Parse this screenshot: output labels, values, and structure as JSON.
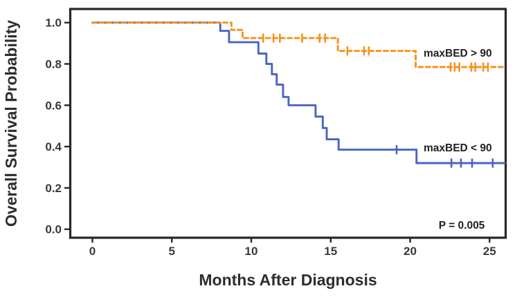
{
  "chart_data": {
    "type": "line",
    "subtype": "kaplan-meier-step",
    "title": "",
    "xlabel": "Months After Diagnosis",
    "ylabel": "Overall Survival Probability",
    "xlim": [
      -1.5,
      26.2
    ],
    "ylim": [
      -0.06,
      1.07
    ],
    "grid": false,
    "legend_position": "inline-labels",
    "x_ticks": {
      "labels": [
        "0",
        "5",
        "10",
        "15",
        "20",
        "25"
      ],
      "values": [
        0,
        5,
        10,
        15,
        20,
        25
      ]
    },
    "y_ticks": {
      "labels": [
        "1.0",
        "0.8",
        "0.6",
        "0.4",
        "0.2",
        "0.0"
      ],
      "values": [
        1.0,
        0.8,
        0.6,
        0.4,
        0.2,
        0.0
      ]
    },
    "annotation": {
      "p_value": "P = 0.005",
      "pos": [
        21.8,
        0.002
      ]
    },
    "series": [
      {
        "name": "maxBED < 90",
        "color": "#4A63C4",
        "style": "solid",
        "steps": [
          [
            0,
            1.0
          ],
          [
            8.05,
            0.96
          ],
          [
            8.6,
            0.905
          ],
          [
            10.45,
            0.85
          ],
          [
            10.95,
            0.8
          ],
          [
            11.3,
            0.75
          ],
          [
            11.6,
            0.7
          ],
          [
            12.0,
            0.64
          ],
          [
            12.35,
            0.6
          ],
          [
            14.05,
            0.545
          ],
          [
            14.5,
            0.49
          ],
          [
            14.75,
            0.435
          ],
          [
            15.5,
            0.385
          ],
          [
            20.4,
            0.32
          ]
        ],
        "end_time": 25.95,
        "censors": [
          [
            19.15,
            0.385
          ],
          [
            22.6,
            0.32
          ],
          [
            23.2,
            0.32
          ],
          [
            23.9,
            0.32
          ],
          [
            25.2,
            0.32
          ]
        ],
        "label_pos": [
          20.85,
          0.377
        ]
      },
      {
        "name": "maxBED > 90",
        "color": "#F6921E",
        "style": "dashed",
        "steps": [
          [
            0,
            1.0
          ],
          [
            8.75,
            0.965
          ],
          [
            9.45,
            0.925
          ],
          [
            15.45,
            0.863
          ],
          [
            20.35,
            0.785
          ]
        ],
        "end_time": 25.85,
        "censors": [
          [
            10.75,
            0.925
          ],
          [
            11.4,
            0.925
          ],
          [
            11.8,
            0.925
          ],
          [
            13.2,
            0.925
          ],
          [
            14.3,
            0.925
          ],
          [
            14.65,
            0.925
          ],
          [
            16.05,
            0.863
          ],
          [
            17.1,
            0.863
          ],
          [
            17.4,
            0.863
          ],
          [
            22.55,
            0.785
          ],
          [
            22.8,
            0.785
          ],
          [
            23.1,
            0.785
          ],
          [
            23.85,
            0.785
          ],
          [
            24.1,
            0.785
          ],
          [
            24.6,
            0.785
          ],
          [
            24.9,
            0.785
          ]
        ],
        "label_pos": [
          20.85,
          0.835
        ]
      }
    ],
    "colors": {
      "frame": "#262626",
      "tick": "#2d2d2d",
      "background": "#ffffff"
    }
  }
}
